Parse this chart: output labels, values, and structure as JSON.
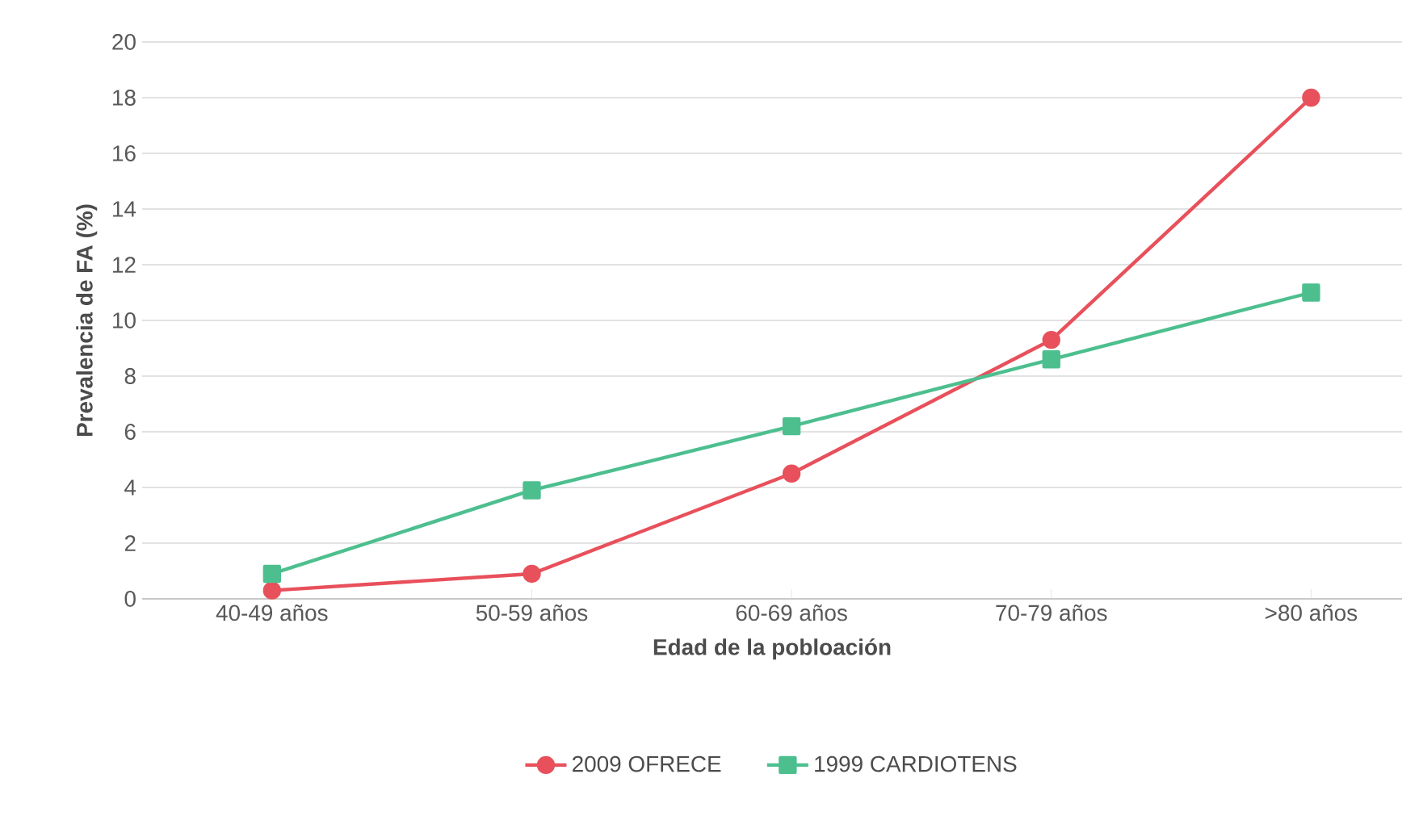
{
  "chart_data": {
    "type": "line",
    "xlabel": "Edad de la pobloación",
    "ylabel": "Prevalencia de FA (%)",
    "categories": [
      "40-49 años",
      "50-59 años",
      "60-69 años",
      "70-79 años",
      ">80 años"
    ],
    "series": [
      {
        "name": "2009 OFRECE",
        "color": "#e8505b",
        "marker": "circle",
        "values": [
          0.3,
          0.9,
          4.5,
          9.3,
          18
        ]
      },
      {
        "name": "1999 CARDIOTENS",
        "color": "#4dbf8f",
        "marker": "square",
        "values": [
          0.9,
          3.9,
          6.2,
          8.6,
          11
        ]
      }
    ],
    "ylim": [
      0,
      20
    ],
    "yticks": [
      0,
      2,
      4,
      6,
      8,
      10,
      12,
      14,
      16,
      18,
      20
    ],
    "grid": "y",
    "legend": "bottom"
  }
}
